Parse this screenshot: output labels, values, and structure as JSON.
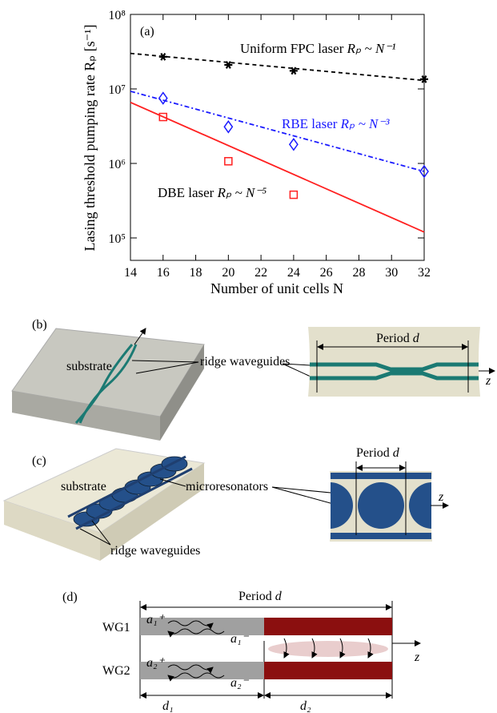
{
  "chart_data": {
    "type": "scatter",
    "panel": "(a)",
    "y_label": "Lasing threshold pumping rate Rₚ [s⁻¹]",
    "x_label": "Number of unit cells N",
    "xlim": [
      14,
      32
    ],
    "xticks": [
      14,
      16,
      18,
      20,
      22,
      24,
      26,
      28,
      30,
      32
    ],
    "ylim": [
      50000,
      100000000
    ],
    "log_y": true,
    "yticks": [
      {
        "value": 100000,
        "label": "10⁵"
      },
      {
        "value": 1000000,
        "label": "10⁶"
      },
      {
        "value": 10000000,
        "label": "10⁷"
      },
      {
        "value": 100000000,
        "label": "10⁸"
      }
    ],
    "series": [
      {
        "name": "Uniform FPC laser",
        "law": "Rₚ ~ N⁻¹",
        "color": "#000000",
        "marker": "star",
        "dash": "5 4",
        "x": [
          16,
          20,
          24,
          32
        ],
        "values": [
          27000000,
          21000000,
          17500000,
          13500000
        ],
        "fit": {
          "x": [
            14,
            32
          ],
          "values": [
            30000000,
            13000000
          ]
        }
      },
      {
        "name": "RBE  laser",
        "law": "Rₚ ~ N⁻³",
        "color": "#1a1aff",
        "marker": "diamond",
        "dash": "6 3 2 3",
        "x": [
          16,
          20,
          24,
          32
        ],
        "values": [
          7500000,
          3100000,
          1800000,
          780000
        ],
        "fit": {
          "x": [
            14,
            32
          ],
          "values": [
            9300000,
            780000
          ]
        }
      },
      {
        "name": "DBE laser",
        "law": "Rₚ ~ N⁻⁵",
        "color": "#ff2020",
        "marker": "square",
        "dash": "none",
        "x": [
          16,
          20,
          24
        ],
        "values": [
          4200000,
          1070000,
          380000
        ],
        "fit": {
          "x": [
            14,
            32
          ],
          "values": [
            6600000,
            120000
          ]
        }
      }
    ]
  },
  "panel_b": {
    "label": "(b)",
    "substrate": "substrate",
    "ridge": "ridge waveguides",
    "period": "Period",
    "d": "d",
    "z": "z"
  },
  "panel_c": {
    "label": "(c)",
    "substrate": "substrate",
    "resonators": "microresonators",
    "ridge": "ridge waveguides",
    "period": "Period",
    "d": "d",
    "z": "z"
  },
  "panel_d": {
    "label": "(d)",
    "period": "Period",
    "d": "d",
    "wg1": "WG1",
    "wg2": "WG2",
    "a1p": "a₁⁺",
    "a1m": "a₁⁻",
    "a2p": "a₂⁺",
    "a2m": "a₂⁻",
    "z": "z",
    "d1": "d₁",
    "d2": "d₂"
  }
}
